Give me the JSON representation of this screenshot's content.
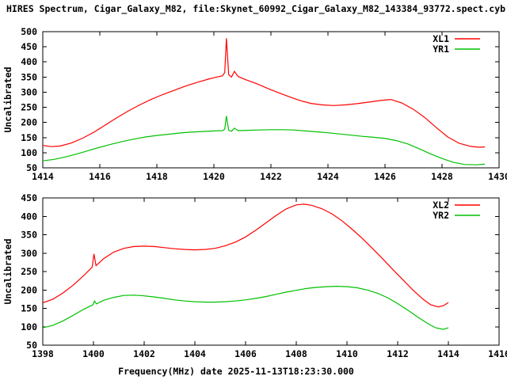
{
  "window": {
    "title": "HIRES Spectrum, Cigar_Galaxy_M82, file:Skynet_60992_Cigar_Galaxy_M82_143384_93772.spect.cyb"
  },
  "colors": {
    "background": "#ffffff",
    "foreground": "#000000",
    "xl_series": "#ff0000",
    "yr_series": "#00c000"
  },
  "chart_data": [
    {
      "type": "line",
      "title": "",
      "xlabel": "",
      "ylabel": "Uncalibrated",
      "xlim": [
        1414,
        1430
      ],
      "ylim": [
        50,
        500
      ],
      "xticks": [
        1414,
        1416,
        1418,
        1420,
        1422,
        1424,
        1426,
        1428,
        1430
      ],
      "yticks": [
        50,
        100,
        150,
        200,
        250,
        300,
        350,
        400,
        450,
        500
      ],
      "grid": false,
      "legend_position": "top-right-inside",
      "series": [
        {
          "name": "XL1",
          "color": "#ff0000",
          "points": [
            [
              1414,
              124
            ],
            [
              1414.3,
              120
            ],
            [
              1414.6,
              122
            ],
            [
              1415,
              132
            ],
            [
              1415.4,
              148
            ],
            [
              1415.8,
              168
            ],
            [
              1416.2,
              192
            ],
            [
              1416.6,
              216
            ],
            [
              1417,
              238
            ],
            [
              1417.4,
              258
            ],
            [
              1417.8,
              276
            ],
            [
              1418.2,
              292
            ],
            [
              1418.6,
              306
            ],
            [
              1419,
              320
            ],
            [
              1419.4,
              332
            ],
            [
              1419.8,
              343
            ],
            [
              1420.1,
              350
            ],
            [
              1420.3,
              354
            ],
            [
              1420.38,
              365
            ],
            [
              1420.44,
              478
            ],
            [
              1420.52,
              358
            ],
            [
              1420.62,
              350
            ],
            [
              1420.72,
              369
            ],
            [
              1420.85,
              352
            ],
            [
              1421.1,
              342
            ],
            [
              1421.5,
              328
            ],
            [
              1422,
              308
            ],
            [
              1422.5,
              290
            ],
            [
              1423,
              273
            ],
            [
              1423.4,
              263
            ],
            [
              1423.8,
              258
            ],
            [
              1424.2,
              256
            ],
            [
              1424.6,
              258
            ],
            [
              1425,
              262
            ],
            [
              1425.4,
              267
            ],
            [
              1425.8,
              272
            ],
            [
              1426.2,
              276
            ],
            [
              1426.6,
              264
            ],
            [
              1427,
              243
            ],
            [
              1427.4,
              216
            ],
            [
              1427.8,
              183
            ],
            [
              1428.2,
              152
            ],
            [
              1428.6,
              131
            ],
            [
              1429,
              121
            ],
            [
              1429.3,
              118
            ],
            [
              1429.5,
              119
            ]
          ]
        },
        {
          "name": "YR1",
          "color": "#00c000",
          "points": [
            [
              1414,
              73
            ],
            [
              1414.4,
              78
            ],
            [
              1414.8,
              86
            ],
            [
              1415.2,
              96
            ],
            [
              1415.6,
              107
            ],
            [
              1416,
              118
            ],
            [
              1416.4,
              128
            ],
            [
              1416.8,
              137
            ],
            [
              1417.2,
              145
            ],
            [
              1417.6,
              152
            ],
            [
              1418,
              157
            ],
            [
              1418.4,
              161
            ],
            [
              1418.8,
              165
            ],
            [
              1419.2,
              168
            ],
            [
              1419.6,
              170
            ],
            [
              1420,
              172
            ],
            [
              1420.3,
              173
            ],
            [
              1420.38,
              178
            ],
            [
              1420.44,
              221
            ],
            [
              1420.52,
              174
            ],
            [
              1420.62,
              171
            ],
            [
              1420.72,
              181
            ],
            [
              1420.85,
              173
            ],
            [
              1421.2,
              174
            ],
            [
              1421.6,
              175
            ],
            [
              1422,
              176
            ],
            [
              1422.4,
              176
            ],
            [
              1422.8,
              175
            ],
            [
              1423.2,
              172
            ],
            [
              1423.6,
              169
            ],
            [
              1424,
              166
            ],
            [
              1424.4,
              162
            ],
            [
              1424.8,
              158
            ],
            [
              1425.2,
              154
            ],
            [
              1425.6,
              151
            ],
            [
              1426,
              147
            ],
            [
              1426.4,
              140
            ],
            [
              1426.8,
              129
            ],
            [
              1427.2,
              113
            ],
            [
              1427.6,
              96
            ],
            [
              1428,
              81
            ],
            [
              1428.4,
              68
            ],
            [
              1428.8,
              61
            ],
            [
              1429.2,
              60
            ],
            [
              1429.5,
              62
            ]
          ]
        }
      ]
    },
    {
      "type": "line",
      "title": "",
      "xlabel": "Frequency(MHz) date 2025-11-13T18:23:30.000",
      "ylabel": "Uncalibrated",
      "xlim": [
        1398,
        1416
      ],
      "ylim": [
        50,
        450
      ],
      "xticks": [
        1398,
        1400,
        1402,
        1404,
        1406,
        1408,
        1410,
        1412,
        1414,
        1416
      ],
      "yticks": [
        50,
        100,
        150,
        200,
        250,
        300,
        350,
        400,
        450
      ],
      "grid": false,
      "legend_position": "top-right-inside",
      "series": [
        {
          "name": "XL2",
          "color": "#ff0000",
          "points": [
            [
              1398,
              165
            ],
            [
              1398.4,
              175
            ],
            [
              1398.8,
              192
            ],
            [
              1399.2,
              213
            ],
            [
              1399.6,
              238
            ],
            [
              1399.95,
              262
            ],
            [
              1400.02,
              298
            ],
            [
              1400.1,
              266
            ],
            [
              1400.4,
              285
            ],
            [
              1400.8,
              303
            ],
            [
              1401.2,
              313
            ],
            [
              1401.6,
              318
            ],
            [
              1402,
              319
            ],
            [
              1402.4,
              318
            ],
            [
              1402.8,
              315
            ],
            [
              1403.2,
              312
            ],
            [
              1403.6,
              310
            ],
            [
              1404,
              309
            ],
            [
              1404.4,
              310
            ],
            [
              1404.8,
              313
            ],
            [
              1405.2,
              320
            ],
            [
              1405.6,
              330
            ],
            [
              1406,
              344
            ],
            [
              1406.4,
              362
            ],
            [
              1406.8,
              382
            ],
            [
              1407.2,
              402
            ],
            [
              1407.6,
              420
            ],
            [
              1408,
              431
            ],
            [
              1408.3,
              433
            ],
            [
              1408.6,
              430
            ],
            [
              1409,
              421
            ],
            [
              1409.4,
              407
            ],
            [
              1409.8,
              388
            ],
            [
              1410.2,
              365
            ],
            [
              1410.6,
              340
            ],
            [
              1411,
              313
            ],
            [
              1411.4,
              285
            ],
            [
              1411.8,
              256
            ],
            [
              1412.2,
              228
            ],
            [
              1412.6,
              200
            ],
            [
              1413,
              175
            ],
            [
              1413.3,
              160
            ],
            [
              1413.6,
              154
            ],
            [
              1413.8,
              157
            ],
            [
              1414,
              166
            ]
          ]
        },
        {
          "name": "YR2",
          "color": "#00c000",
          "points": [
            [
              1398,
              97
            ],
            [
              1398.4,
              104
            ],
            [
              1398.8,
              116
            ],
            [
              1399.2,
              131
            ],
            [
              1399.6,
              147
            ],
            [
              1399.98,
              160
            ],
            [
              1400.04,
              170
            ],
            [
              1400.12,
              162
            ],
            [
              1400.4,
              172
            ],
            [
              1400.8,
              180
            ],
            [
              1401.2,
              185
            ],
            [
              1401.6,
              186
            ],
            [
              1402,
              184
            ],
            [
              1402.4,
              181
            ],
            [
              1402.8,
              177
            ],
            [
              1403.2,
              173
            ],
            [
              1403.6,
              170
            ],
            [
              1404,
              168
            ],
            [
              1404.4,
              167
            ],
            [
              1404.8,
              167
            ],
            [
              1405.2,
              168
            ],
            [
              1405.6,
              170
            ],
            [
              1406,
              173
            ],
            [
              1406.4,
              177
            ],
            [
              1406.8,
              182
            ],
            [
              1407.2,
              188
            ],
            [
              1407.6,
              194
            ],
            [
              1408,
              199
            ],
            [
              1408.4,
              204
            ],
            [
              1408.8,
              207
            ],
            [
              1409.2,
              209
            ],
            [
              1409.6,
              210
            ],
            [
              1410,
              209
            ],
            [
              1410.4,
              206
            ],
            [
              1410.8,
              200
            ],
            [
              1411.2,
              191
            ],
            [
              1411.6,
              179
            ],
            [
              1412,
              163
            ],
            [
              1412.4,
              145
            ],
            [
              1412.8,
              126
            ],
            [
              1413.2,
              108
            ],
            [
              1413.5,
              97
            ],
            [
              1413.8,
              93
            ],
            [
              1414,
              97
            ]
          ]
        }
      ]
    }
  ]
}
